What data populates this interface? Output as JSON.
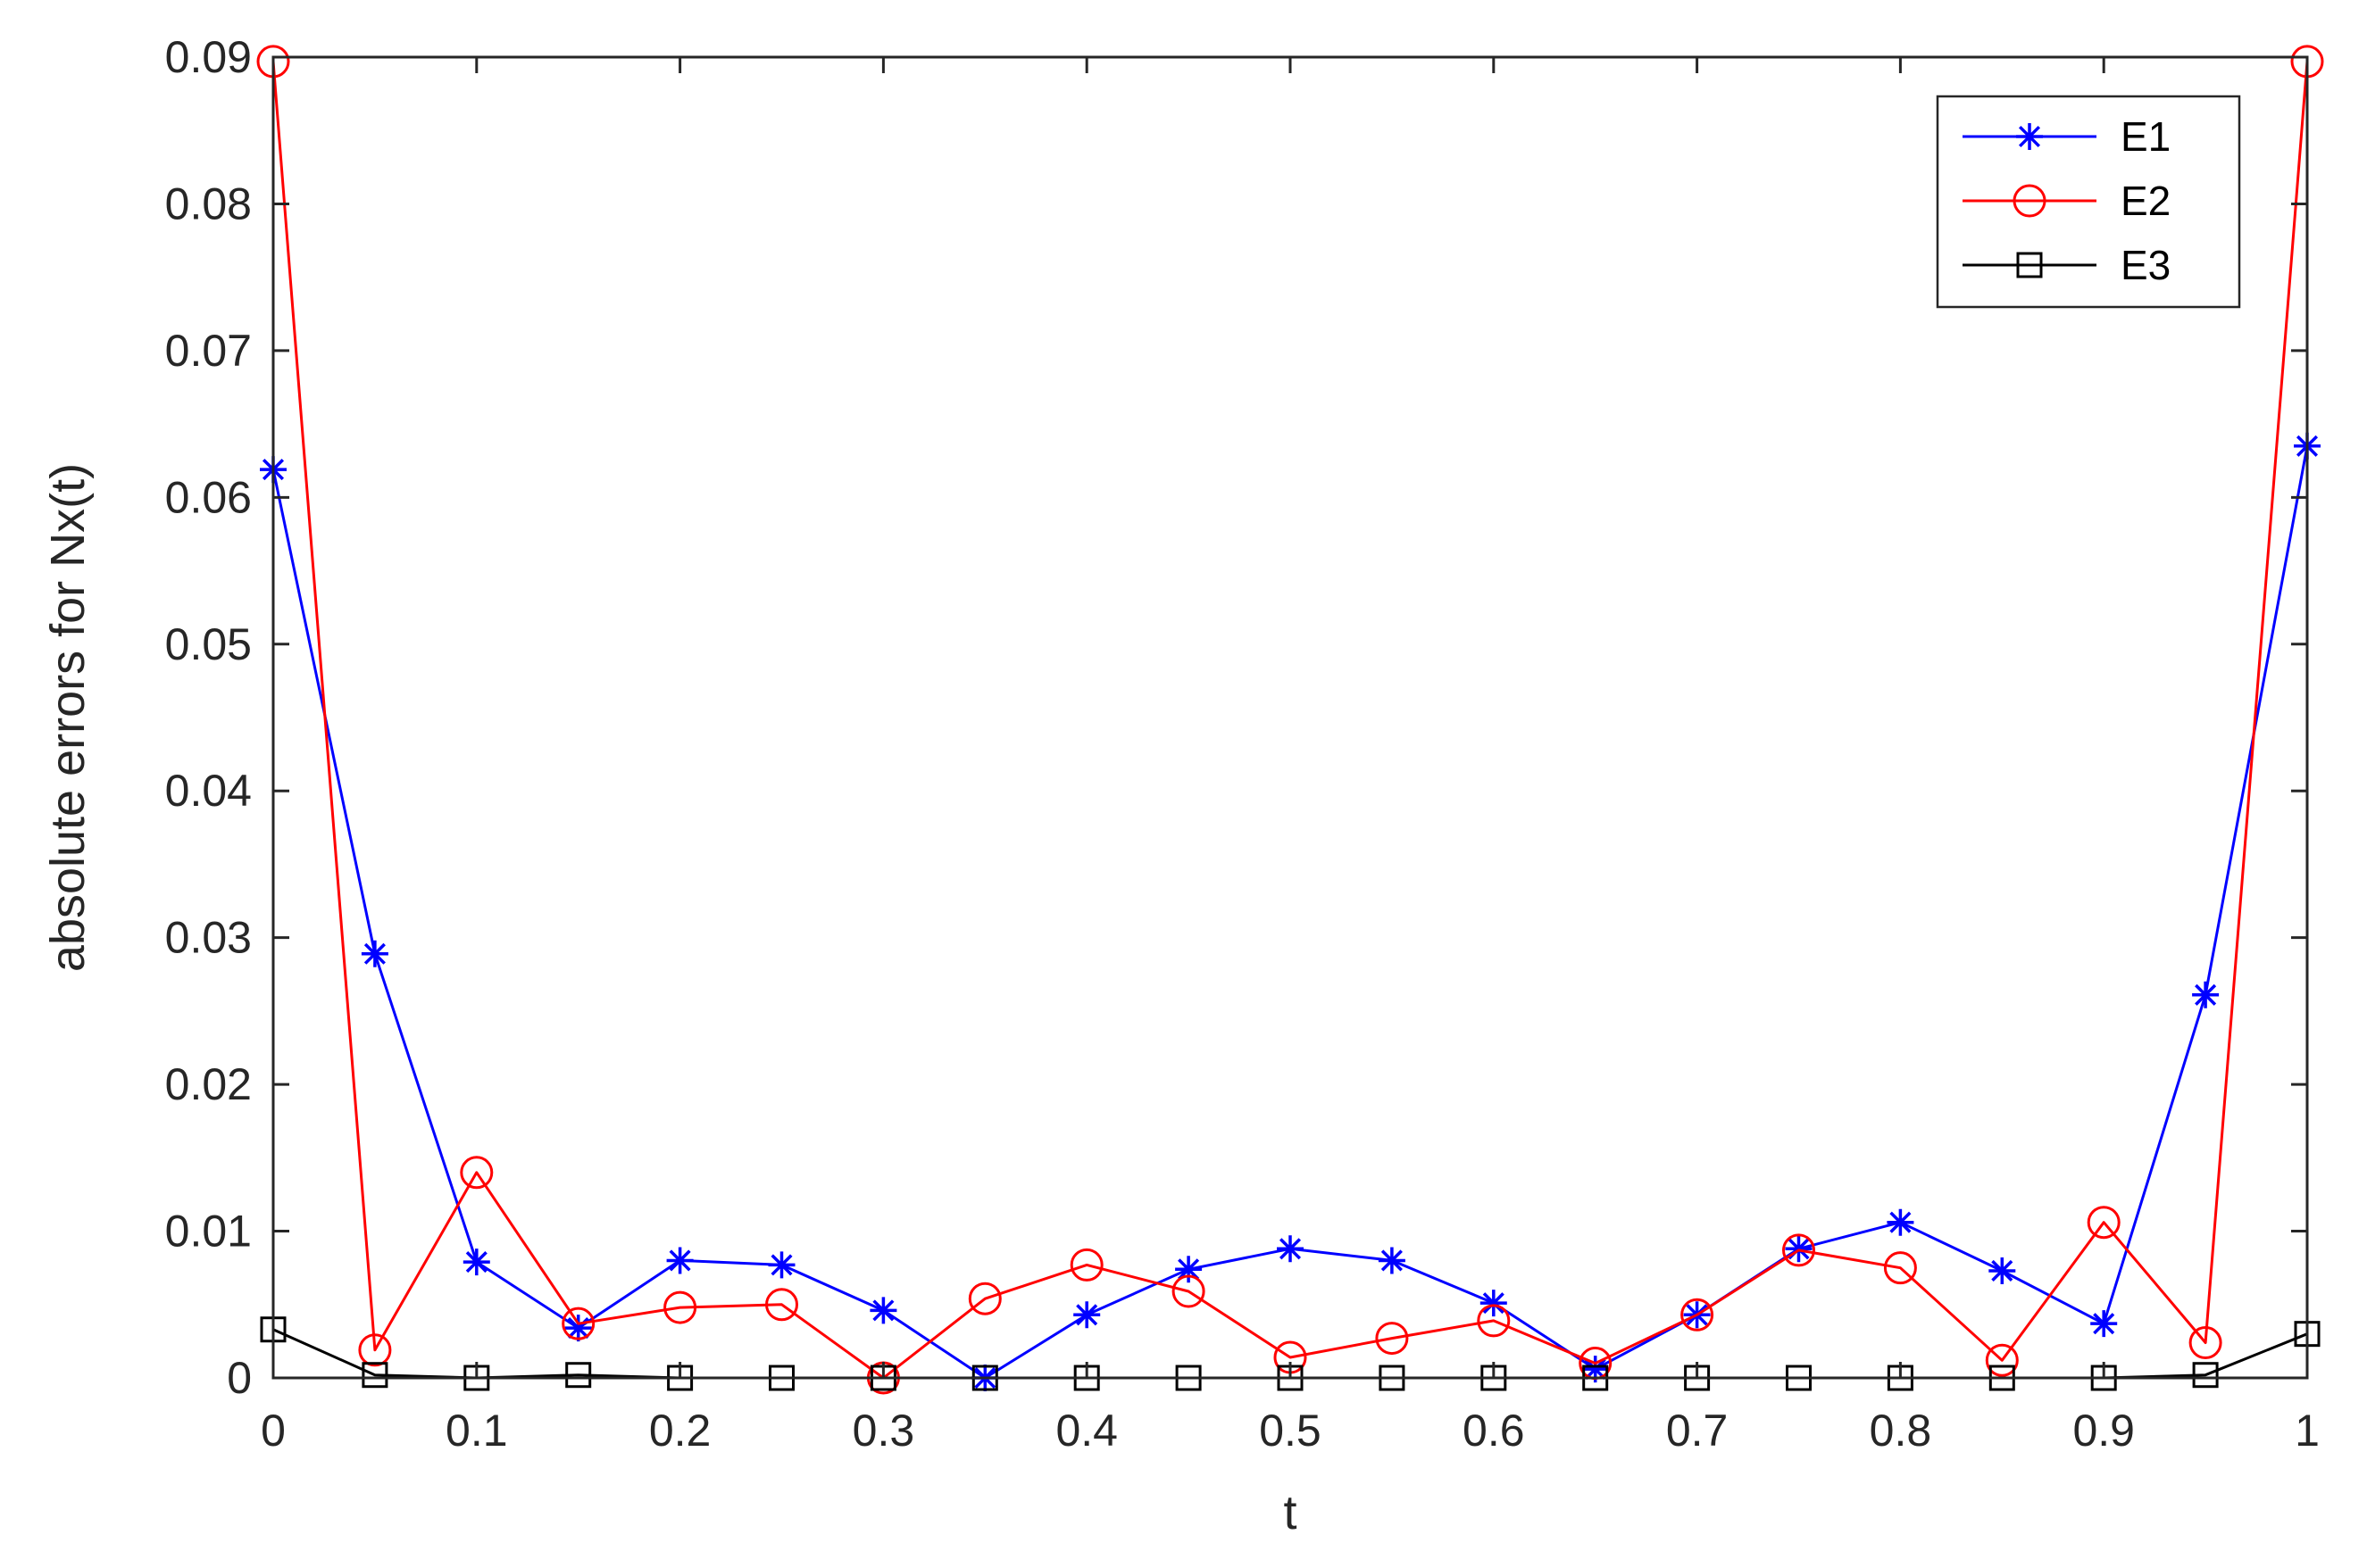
{
  "chart_data": {
    "type": "line",
    "xlabel": "t",
    "ylabel": "absolute errors for Nx(t)",
    "xlim": [
      0,
      1
    ],
    "ylim": [
      0,
      0.09
    ],
    "xticks": [
      "0",
      "0.1",
      "0.2",
      "0.3",
      "0.4",
      "0.5",
      "0.6",
      "0.7",
      "0.8",
      "0.9",
      "1"
    ],
    "yticks": [
      "0",
      "0.01",
      "0.02",
      "0.03",
      "0.04",
      "0.05",
      "0.06",
      "0.07",
      "0.08",
      "0.09"
    ],
    "grid": false,
    "legend_position": "top-right",
    "x": [
      0,
      0.05,
      0.1,
      0.15,
      0.2,
      0.25,
      0.3,
      0.35,
      0.4,
      0.45,
      0.5,
      0.55,
      0.6,
      0.65,
      0.7,
      0.75,
      0.8,
      0.85,
      0.9,
      0.95,
      1
    ],
    "series": [
      {
        "name": "E1",
        "color": "#0000ff",
        "marker": "asterisk",
        "values": [
          0.0619,
          0.0289,
          0.0079,
          0.0034,
          0.008,
          0.0077,
          0.0046,
          0.0,
          0.0043,
          0.0074,
          0.0088,
          0.008,
          0.0051,
          0.0006,
          0.0043,
          0.0088,
          0.0106,
          0.0073,
          0.0037,
          0.0261,
          0.0635
        ]
      },
      {
        "name": "E2",
        "color": "#ff0000",
        "marker": "circle",
        "values": [
          0.0897,
          0.0019,
          0.014,
          0.0037,
          0.0048,
          0.005,
          0.0,
          0.0054,
          0.0077,
          0.0059,
          0.0014,
          0.0027,
          0.0039,
          0.001,
          0.0043,
          0.0087,
          0.0075,
          0.0012,
          0.0106,
          0.0024,
          0.0897
        ]
      },
      {
        "name": "E3",
        "color": "#000000",
        "marker": "square",
        "values": [
          0.0033,
          0.0002,
          0.0,
          0.0002,
          0.0,
          0.0,
          0.0,
          0.0,
          0.0,
          0.0,
          0.0,
          0.0,
          0.0,
          0.0,
          0.0,
          0.0,
          0.0,
          0.0,
          0.0,
          0.0002,
          0.003
        ]
      }
    ]
  }
}
